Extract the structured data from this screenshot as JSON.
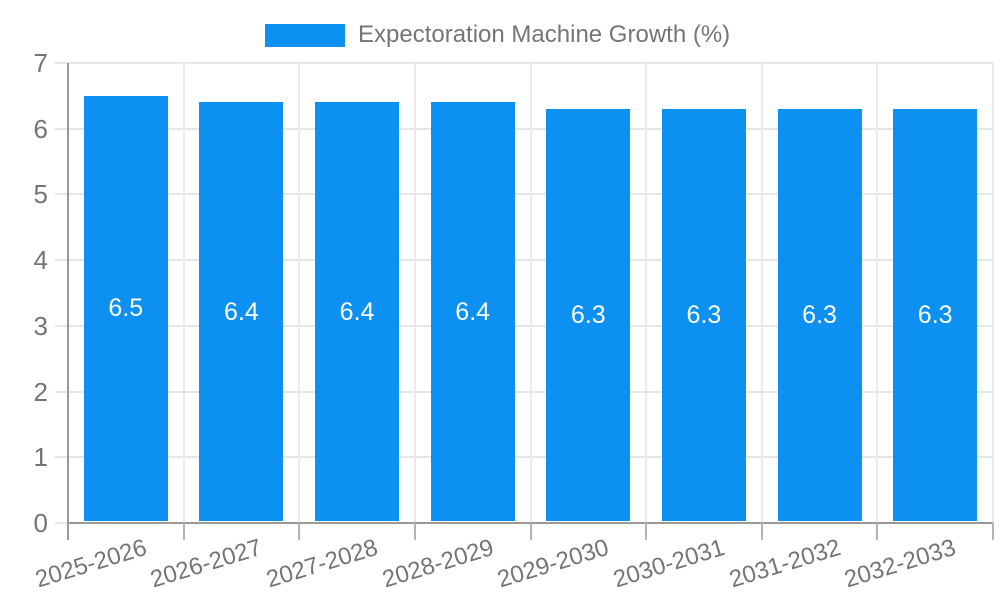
{
  "legend": {
    "label": "Expectoration Machine Growth (%)",
    "swatch_color": "#0c90f1"
  },
  "chart_data": {
    "type": "bar",
    "title": "Expectoration Machine Growth (%)",
    "categories": [
      "2025-2026",
      "2026-2027",
      "2027-2028",
      "2028-2029",
      "2029-2030",
      "2030-2031",
      "2031-2032",
      "2032-2033"
    ],
    "values": [
      6.5,
      6.4,
      6.4,
      6.4,
      6.3,
      6.3,
      6.3,
      6.3
    ],
    "value_labels": [
      "6.5",
      "6.4",
      "6.4",
      "6.4",
      "6.3",
      "6.3",
      "6.3",
      "6.3"
    ],
    "xlabel": "",
    "ylabel": "",
    "ylim": [
      0,
      7
    ],
    "yticks": [
      0,
      1,
      2,
      3,
      4,
      5,
      6,
      7
    ],
    "grid": true,
    "legend_position": "top",
    "colors": {
      "bar": "#0c90f1",
      "bar_label": "#ffffff",
      "axis_text": "#757575",
      "grid_h": "#e6e6e6",
      "grid_v": "#ebebeb",
      "axis_line": "#999999",
      "tick": "#b3b3b3"
    }
  }
}
